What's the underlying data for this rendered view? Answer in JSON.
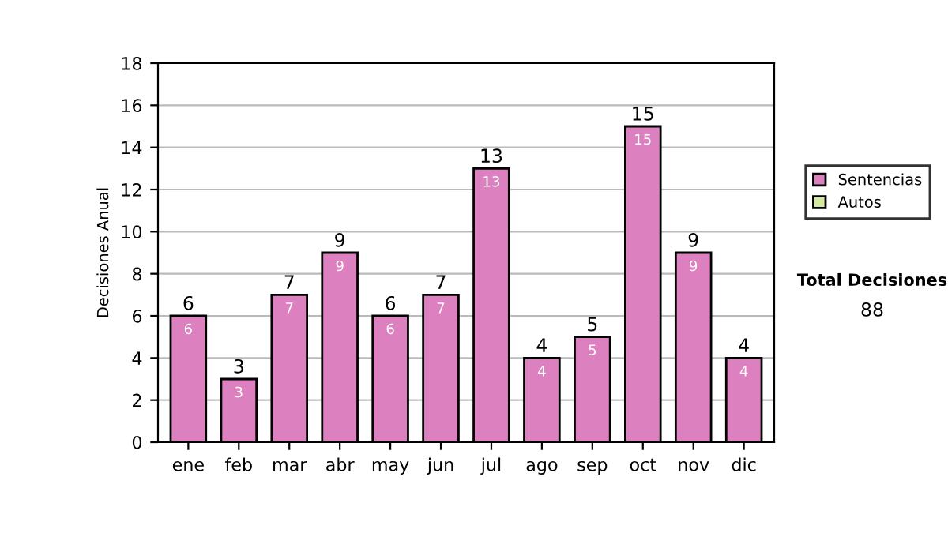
{
  "chart_data": {
    "type": "bar",
    "ylabel": "Decisiones Anual",
    "stacked": true,
    "categories": [
      "ene",
      "feb",
      "mar",
      "abr",
      "may",
      "jun",
      "jul",
      "ago",
      "sep",
      "oct",
      "nov",
      "dic"
    ],
    "series": [
      {
        "name": "Sentencias",
        "color": "#dd80c0",
        "values": [
          6,
          3,
          7,
          9,
          6,
          7,
          13,
          4,
          5,
          15,
          9,
          4
        ],
        "value_labels": [
          "6",
          "3",
          "7",
          "9",
          "6",
          "7",
          "13",
          "4",
          "5",
          "15",
          "9",
          "4"
        ]
      },
      {
        "name": "Autos",
        "color": "#d4e8a0",
        "values": [
          0,
          0,
          0,
          0,
          0,
          0,
          0,
          0,
          0,
          0,
          0,
          0
        ]
      }
    ],
    "totals": [
      "6",
      "3",
      "7",
      "9",
      "6",
      "7",
      "13",
      "4",
      "5",
      "15",
      "9",
      "4"
    ],
    "ylim": [
      0,
      18
    ],
    "yticks": [
      0,
      2,
      4,
      6,
      8,
      10,
      12,
      14,
      16,
      18
    ],
    "grid": "y",
    "legend": "right",
    "annotations": [
      "Total Decisiones",
      "88"
    ]
  }
}
